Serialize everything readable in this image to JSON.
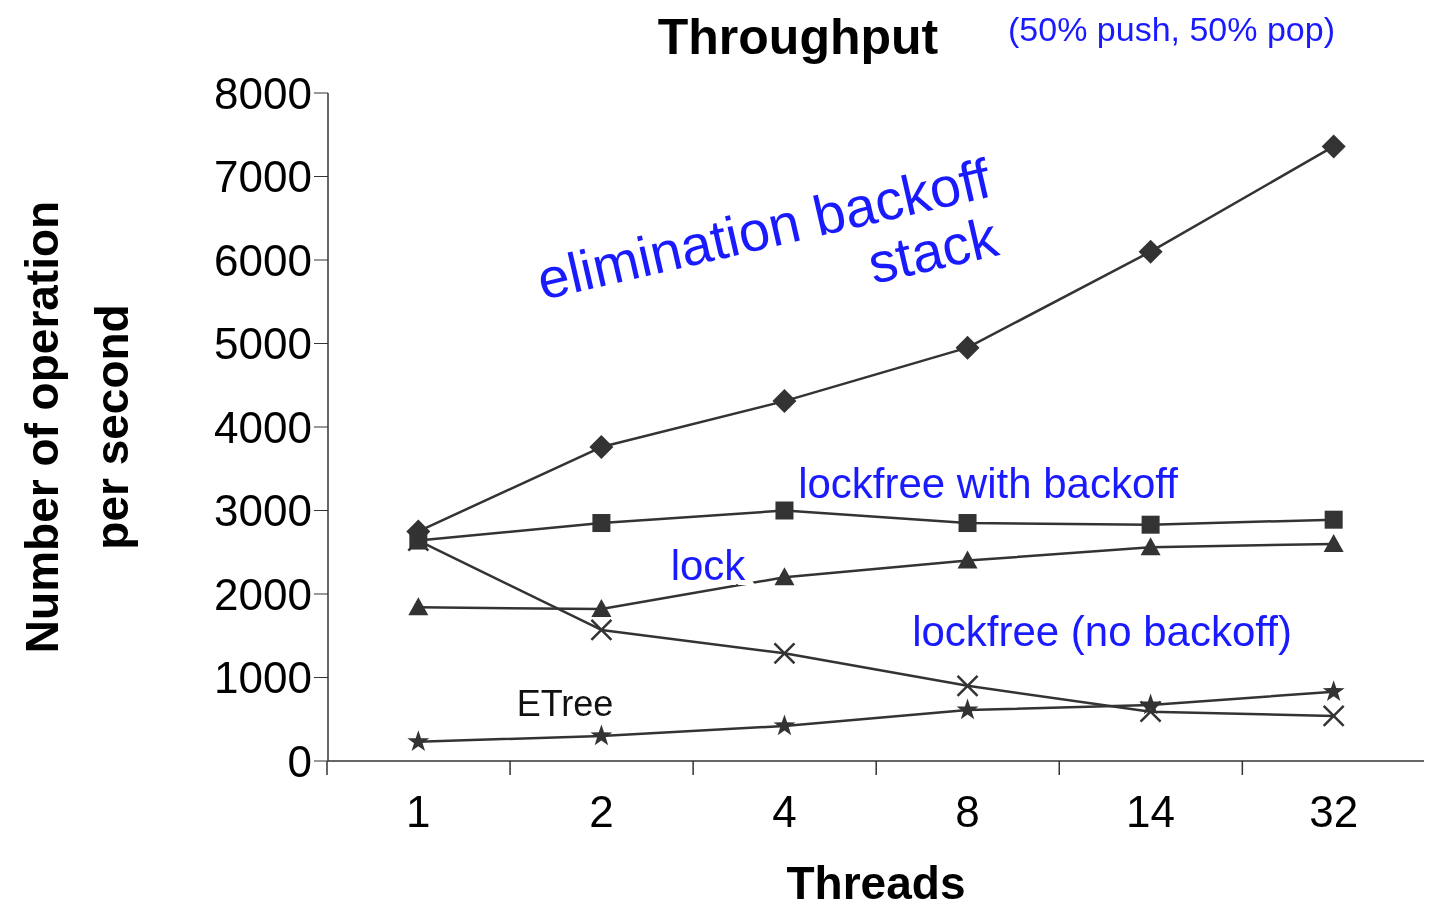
{
  "chart_data": {
    "type": "line",
    "title": "Throughput",
    "subtitle": "(50% push, 50% pop)",
    "xlabel": "Threads",
    "ylabel": "Number of operation per second",
    "categories": [
      "1",
      "2",
      "4",
      "8",
      "14",
      "32"
    ],
    "series": [
      {
        "name": "elimination backoff stack",
        "color": "#333333",
        "marker": "diamond",
        "values": [
          2750,
          3760,
          4310,
          4950,
          6100,
          7360
        ]
      },
      {
        "name": "lockfree with backoff",
        "color": "#333333",
        "marker": "square",
        "values": [
          2640,
          2850,
          3000,
          2850,
          2830,
          2890
        ]
      },
      {
        "name": "lock",
        "color": "#333333",
        "marker": "triangle",
        "values": [
          1840,
          1820,
          2200,
          2400,
          2560,
          2600
        ]
      },
      {
        "name": "lockfree (no backoff)",
        "color": "#333333",
        "marker": "cross",
        "values": [
          2640,
          1570,
          1290,
          900,
          590,
          540
        ]
      },
      {
        "name": "ETree",
        "color": "#333333",
        "marker": "star",
        "values": [
          230,
          300,
          420,
          610,
          670,
          830
        ]
      }
    ],
    "ylim": [
      0,
      8000
    ],
    "yticks": [
      0,
      1000,
      2000,
      3000,
      4000,
      5000,
      6000,
      7000,
      8000
    ]
  }
}
